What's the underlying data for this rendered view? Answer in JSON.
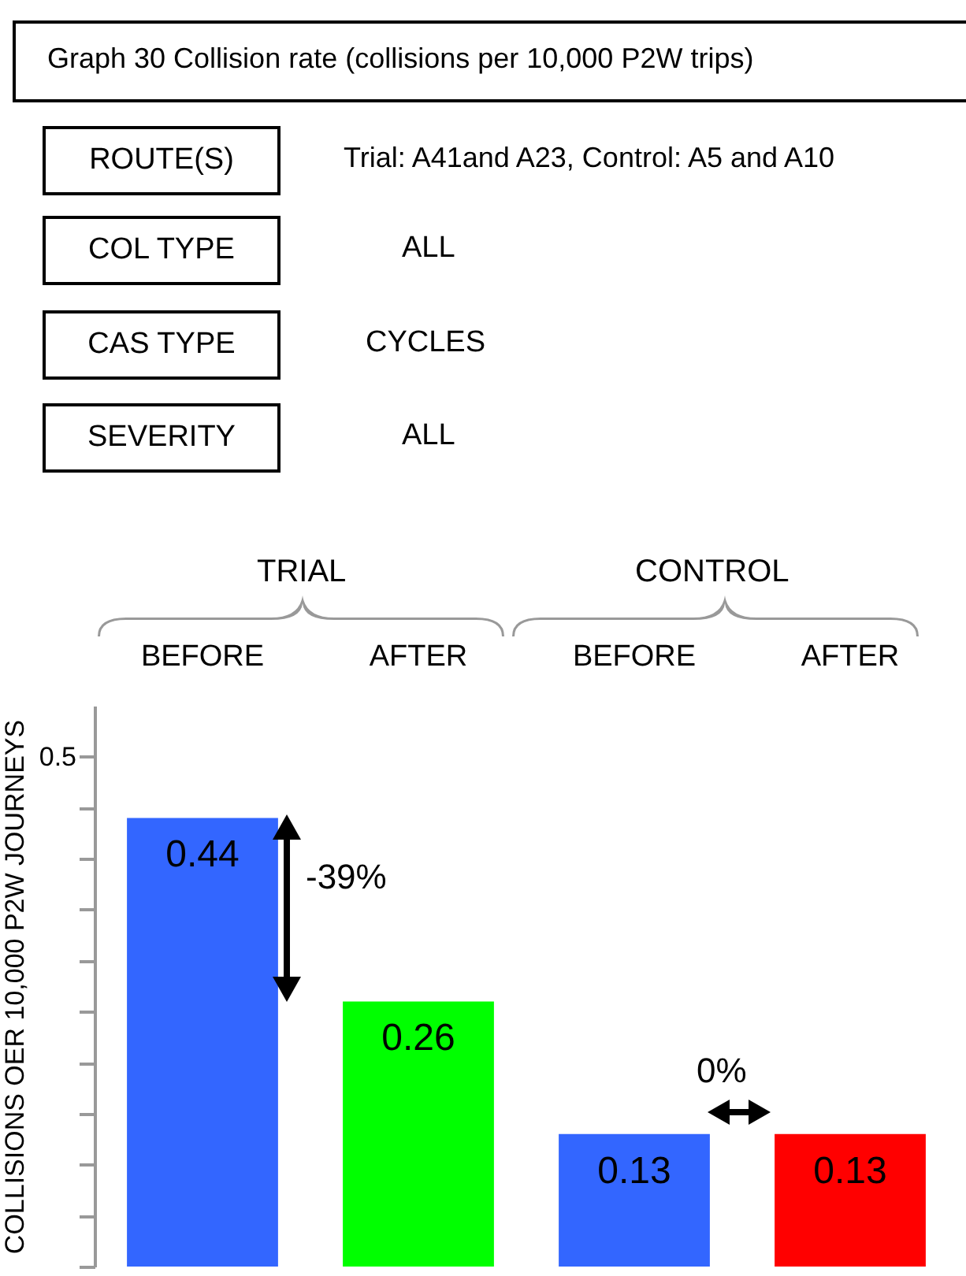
{
  "chart_data": {
    "type": "bar",
    "title": "Graph 30  Collision rate (collisions per 10,000 P2W trips)",
    "ylabel": "COLLISIONS OER 10,000 P2W JOURNEYS",
    "categories": [
      "BEFORE",
      "AFTER",
      "BEFORE",
      "AFTER"
    ],
    "values": [
      0.44,
      0.26,
      0.13,
      0.13
    ],
    "colors": [
      "#3366ff",
      "#00ff00",
      "#3366ff",
      "#ff0000"
    ],
    "data_labels": true,
    "ylim": [
      0,
      0.55
    ],
    "yticks": [
      {
        "value": 0,
        "label": null
      },
      {
        "value": 0.05,
        "label": null
      },
      {
        "value": 0.1,
        "label": null
      },
      {
        "value": 0.15,
        "label": null
      },
      {
        "value": 0.2,
        "label": null
      },
      {
        "value": 0.25,
        "label": null
      },
      {
        "value": 0.3,
        "label": null
      },
      {
        "value": 0.35,
        "label": null
      },
      {
        "value": 0.4,
        "label": null
      },
      {
        "value": 0.45,
        "label": null
      },
      0.5
    ],
    "annotations": [
      "ROUTE(S)",
      "Trial: A41and A23, Control: A5 and A10",
      "COL TYPE",
      "ALL",
      "CAS TYPE",
      "CYCLES",
      "SEVERITY",
      "ALL",
      "TRIAL",
      "CONTROL",
      "-39%",
      "0%"
    ]
  }
}
